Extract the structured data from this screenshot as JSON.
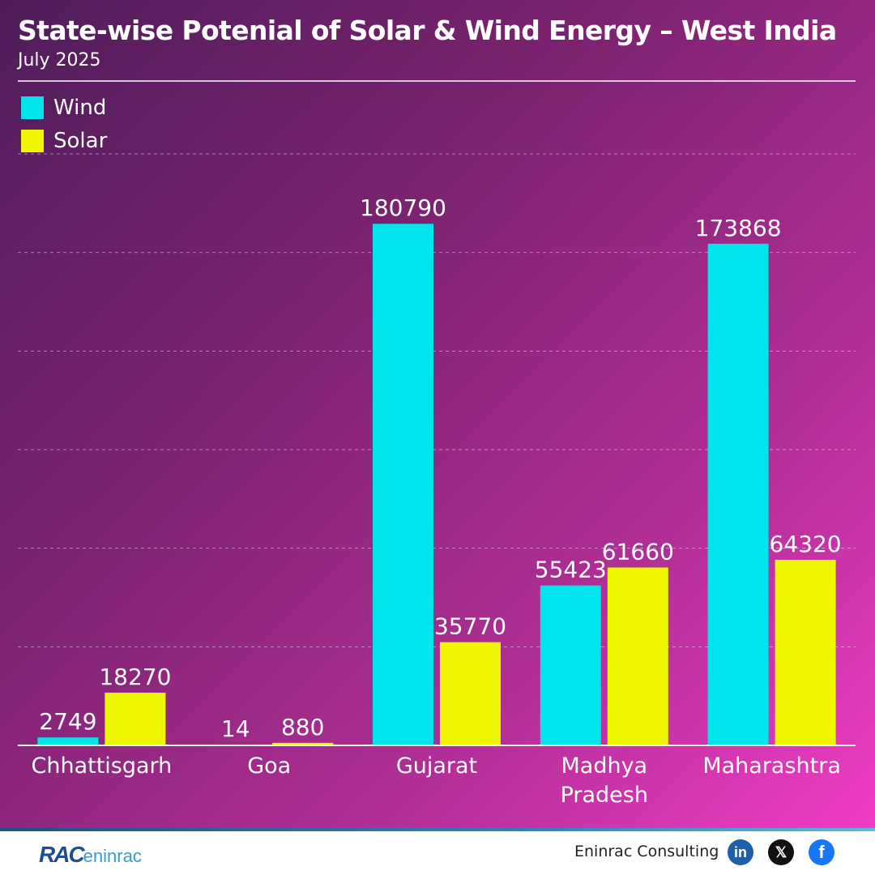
{
  "header": {
    "title": "State-wise Potenial of Solar & Wind Energy – West India",
    "subtitle": "July 2025"
  },
  "colors": {
    "wind": "#00e5ec",
    "solar": "#eef600"
  },
  "chart_data": {
    "type": "bar",
    "title": "State-wise Potenial of Solar & Wind Energy – West India",
    "subtitle": "July 2025",
    "categories": [
      [
        "Chhattisgarh"
      ],
      [
        "Goa"
      ],
      [
        "Gujarat"
      ],
      [
        "Madhya",
        "Pradesh"
      ],
      [
        "Maharashtra"
      ]
    ],
    "series": [
      {
        "name": "Wind",
        "values": [
          2749,
          14,
          180790,
          55423,
          173868
        ]
      },
      {
        "name": "Solar",
        "values": [
          18270,
          880,
          35770,
          61660,
          64320
        ]
      }
    ],
    "ylim": [
      0,
      205000
    ],
    "grid": true,
    "legend": "top-left",
    "data_labels": true
  },
  "footer": {
    "logo_text_1": "RAC",
    "logo_text_2": "eninrac",
    "company": "Eninrac Consulting",
    "social": [
      {
        "icon": "linkedin-icon",
        "glyph": "in",
        "color": "#1f5ea8"
      },
      {
        "icon": "x-icon",
        "glyph": "𝕏",
        "color": "#111111"
      },
      {
        "icon": "facebook-icon",
        "glyph": "f",
        "color": "#1877f2"
      }
    ]
  }
}
